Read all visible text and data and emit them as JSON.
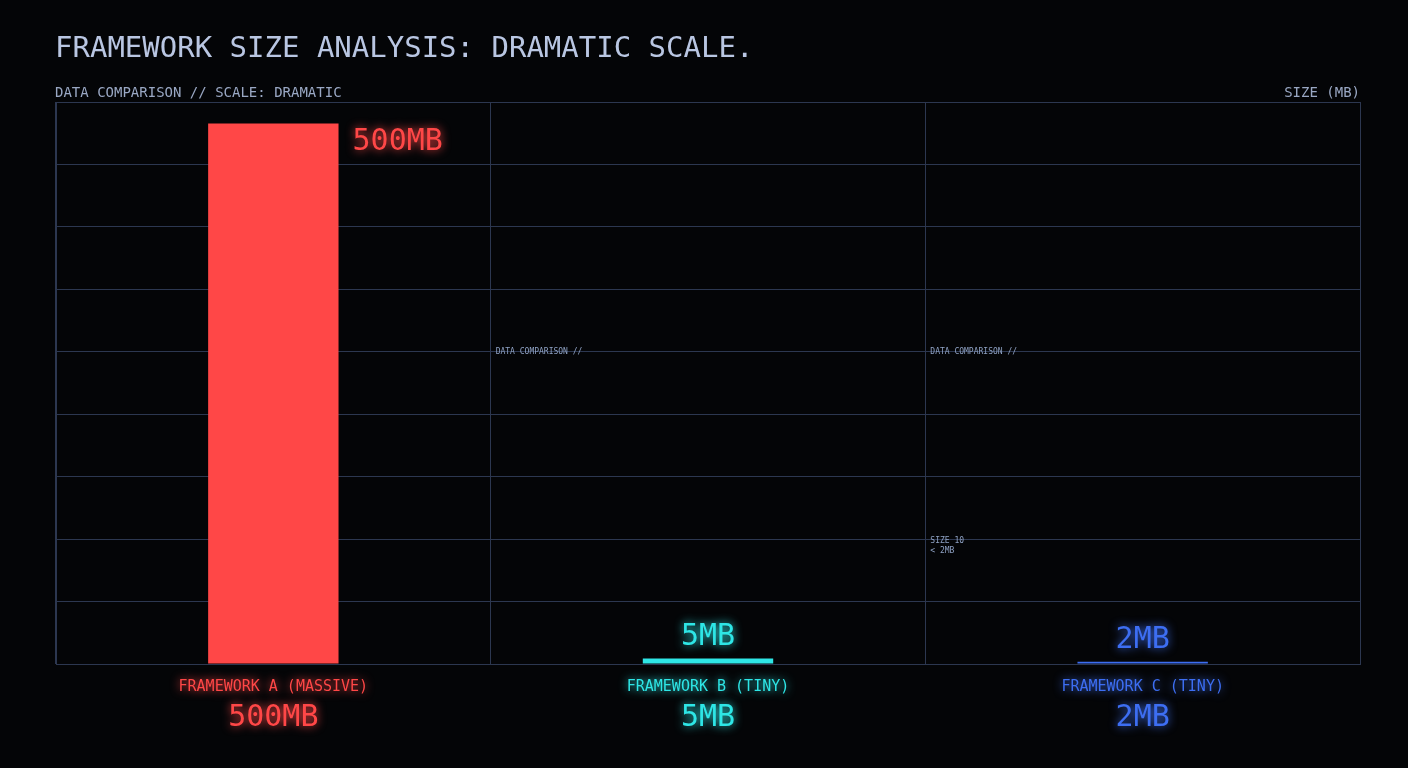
{
  "chart_data": {
    "type": "bar",
    "title": "FRAMEWORK SIZE ANALYSIS: DRAMATIC SCALE.",
    "subtitle": "DATA COMPARISON // SCALE: DRAMATIC",
    "categories": [
      "FRAMEWORK A (MASSIVE)",
      "FRAMEWORK B (TINY)",
      "FRAMEWORK C (TINY)"
    ],
    "values": [
      500,
      5,
      2
    ],
    "colors": [
      "#ff4747",
      "#2ee6e6",
      "#3d6ef2"
    ],
    "value_labels": [
      "500MB",
      "5MB",
      "2MB"
    ],
    "tick_labels": false,
    "grid": true,
    "legend": false,
    "annotations": [
      "SIZE (MB)",
      "DATA COMPARISON //",
      "DATA COMPARISON //",
      "SIZE 10",
      "< 2MB"
    ]
  }
}
